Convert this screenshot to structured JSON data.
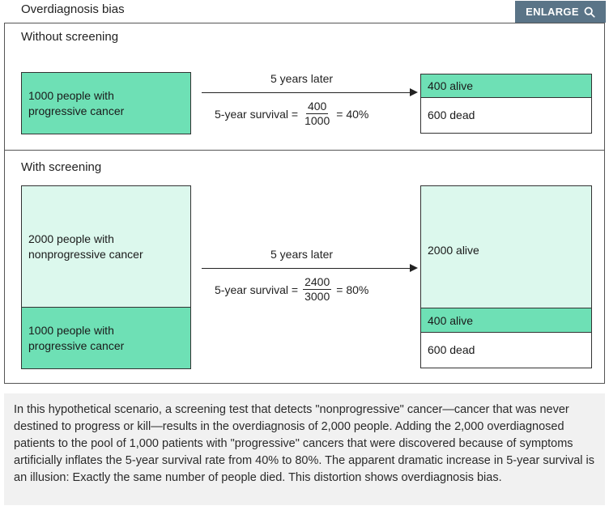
{
  "header": {
    "title": "Overdiagnosis bias",
    "enlarge_label": "ENLARGE",
    "enlarge_icon": "search-icon"
  },
  "colors": {
    "progressive": "#6ee0b5",
    "nonprogressive": "#dcf8ed",
    "button": "#5a7487",
    "caption_bg": "#f1f1f1"
  },
  "without": {
    "label": "Without screening",
    "group": "1000 people with progressive cancer",
    "years_label": "5 years later",
    "survival_prefix": "5-year survival =",
    "numerator": "400",
    "denominator": "1000",
    "result": "= 40%",
    "alive": "400 alive",
    "dead": "600 dead"
  },
  "with": {
    "label": "With screening",
    "group_nonprogressive": "2000 people with nonprogressive cancer",
    "group_progressive": "1000 people with progressive cancer",
    "years_label": "5 years later",
    "survival_prefix": "5-year survival =",
    "numerator": "2400",
    "denominator": "3000",
    "result": "= 80%",
    "alive_nonprogressive": "2000 alive",
    "alive_progressive": "400 alive",
    "dead": "600 dead"
  },
  "caption": "In this hypothetical scenario, a screening test that detects \"nonprogressive\" cancer—cancer that was never destined to progress or kill—results in the overdiagnosis of 2,000 people. Adding the 2,000 overdiagnosed patients to the pool of 1,000 patients with \"progressive\" cancers that were discovered because of symptoms artificially inflates the 5-year survival rate from 40% to 80%. The apparent dramatic increase in 5-year survival is an illusion: Exactly the same number of people died. This distortion shows overdiagnosis bias."
}
